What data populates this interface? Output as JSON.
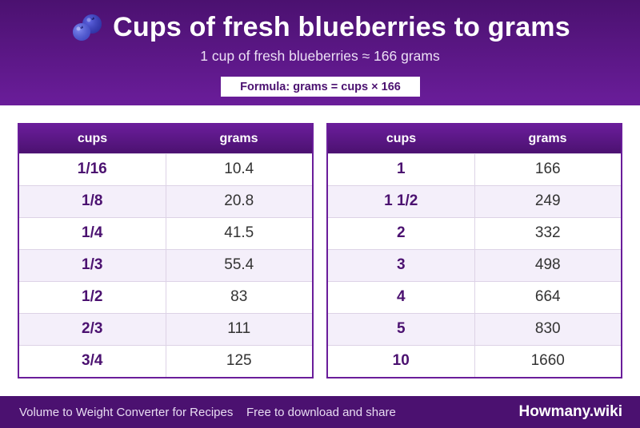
{
  "header": {
    "title": "Cups of fresh blueberries to grams",
    "subtitle": "1 cup of fresh blueberries ≈ 166 grams",
    "formula": "Formula: grams = cups × 166",
    "icon": "blueberry-icon"
  },
  "tables": [
    {
      "headers": [
        "cups",
        "grams"
      ],
      "rows": [
        {
          "cups": "1/16",
          "grams": "10.4"
        },
        {
          "cups": "1/8",
          "grams": "20.8"
        },
        {
          "cups": "1/4",
          "grams": "41.5"
        },
        {
          "cups": "1/3",
          "grams": "55.4"
        },
        {
          "cups": "1/2",
          "grams": "83"
        },
        {
          "cups": "2/3",
          "grams": "111"
        },
        {
          "cups": "3/4",
          "grams": "125"
        }
      ]
    },
    {
      "headers": [
        "cups",
        "grams"
      ],
      "rows": [
        {
          "cups": "1",
          "grams": "166"
        },
        {
          "cups": "1 1/2",
          "grams": "249"
        },
        {
          "cups": "2",
          "grams": "332"
        },
        {
          "cups": "3",
          "grams": "498"
        },
        {
          "cups": "4",
          "grams": "664"
        },
        {
          "cups": "5",
          "grams": "830"
        },
        {
          "cups": "10",
          "grams": "1660"
        }
      ]
    }
  ],
  "footer": {
    "left": "Volume to Weight Converter for Recipes",
    "middle": "Free to download and share",
    "brand": "Howmany.wiki"
  },
  "colors": {
    "header_dark": "#4b1170",
    "header_light": "#6a1d9a",
    "accent_text": "#4b1170",
    "row_alt": "#f4effa"
  }
}
